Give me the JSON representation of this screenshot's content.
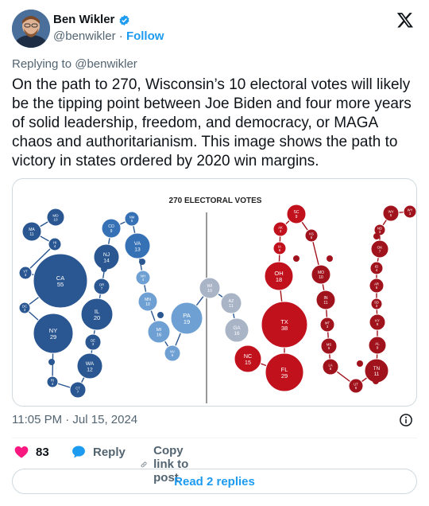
{
  "author": {
    "name": "Ben Wikler",
    "handle": "@benwikler",
    "separator": "·",
    "follow_label": "Follow"
  },
  "icons": {
    "verified": "verified-badge-icon",
    "logo": "x-logo-icon",
    "info": "info-icon",
    "like": "heart-icon",
    "reply": "speech-bubble-icon",
    "copy": "link-icon"
  },
  "colors": {
    "accent": "#1d9bf0",
    "like": "#f91880",
    "blue_state": "#2a5791",
    "light_blue_state": "#6fa0d3",
    "gray_state": "#a9b4c6",
    "red_state": "#b0121d"
  },
  "tweet": {
    "replying_to": "Replying to @benwikler",
    "text": "On the path to 270, Wisconsin’s 10 electoral votes will likely be the tipping point between Joe Biden and four more years of solid leadership, freedom, and democracy, or MAGA chaos and authoritarianism. This image shows the path to victory in states ordered by 2020 win margins.",
    "timestamp": "11:05 PM · Jul 15, 2024"
  },
  "media": {
    "title": "270 ELECTORAL VOTES",
    "states": [
      {
        "abbr": "MD",
        "ev": "10",
        "color": "#2a5791"
      },
      {
        "abbr": "MA",
        "ev": "11",
        "color": "#2a5791"
      },
      {
        "abbr": "HI",
        "ev": "4",
        "color": "#2a5791"
      },
      {
        "abbr": "VT",
        "ev": "3",
        "color": "#2a5791"
      },
      {
        "abbr": "CA",
        "ev": "55",
        "color": "#2a5791"
      },
      {
        "abbr": "DC",
        "ev": "3",
        "color": "#2a5791"
      },
      {
        "abbr": "NY",
        "ev": "29",
        "color": "#2a5791"
      },
      {
        "abbr": "RI",
        "ev": "4",
        "color": "#2a5791"
      },
      {
        "abbr": "CT",
        "ev": "7",
        "color": "#2a5791"
      },
      {
        "abbr": "WA",
        "ev": "12",
        "color": "#2a5791"
      },
      {
        "abbr": "DE",
        "ev": "3",
        "color": "#2a5791"
      },
      {
        "abbr": "IL",
        "ev": "20",
        "color": "#2a5791"
      },
      {
        "abbr": "OR",
        "ev": "7",
        "color": "#2a5791"
      },
      {
        "abbr": "NJ",
        "ev": "14",
        "color": "#2a5791"
      },
      {
        "abbr": "CO",
        "ev": "9",
        "color": "#3671b5"
      },
      {
        "abbr": "NM",
        "ev": "5",
        "color": "#3671b5"
      },
      {
        "abbr": "VA",
        "ev": "13",
        "color": "#3671b5"
      },
      {
        "abbr": "NH",
        "ev": "4",
        "color": "#6fa0d3"
      },
      {
        "abbr": "MN",
        "ev": "10",
        "color": "#6fa0d3"
      },
      {
        "abbr": "MI",
        "ev": "16",
        "color": "#6fa0d3"
      },
      {
        "abbr": "NV",
        "ev": "6",
        "color": "#6fa0d3"
      },
      {
        "abbr": "PA",
        "ev": "19",
        "color": "#6fa0d3"
      },
      {
        "abbr": "WI",
        "ev": "10",
        "color": "#a9b4c6"
      },
      {
        "abbr": "AZ",
        "ev": "11",
        "color": "#a9b4c6"
      },
      {
        "abbr": "GA",
        "ev": "16",
        "color": "#a9b4c6"
      },
      {
        "abbr": "NC",
        "ev": "15",
        "color": "#c0111d"
      },
      {
        "abbr": "FL",
        "ev": "29",
        "color": "#c0111d"
      },
      {
        "abbr": "TX",
        "ev": "38",
        "color": "#c0111d"
      },
      {
        "abbr": "OH",
        "ev": "18",
        "color": "#c0111d"
      },
      {
        "abbr": "IA",
        "ev": "6",
        "color": "#c0111d"
      },
      {
        "abbr": "AK",
        "ev": "3",
        "color": "#c0111d"
      },
      {
        "abbr": "SC",
        "ev": "9",
        "color": "#c0111d"
      },
      {
        "abbr": "KS",
        "ev": "6",
        "color": "#a1131c"
      },
      {
        "abbr": "MO",
        "ev": "10",
        "color": "#a1131c"
      },
      {
        "abbr": "IN",
        "ev": "11",
        "color": "#a1131c"
      },
      {
        "abbr": "MT",
        "ev": "3",
        "color": "#a1131c"
      },
      {
        "abbr": "MS",
        "ev": "6",
        "color": "#a1131c"
      },
      {
        "abbr": "LA",
        "ev": "8",
        "color": "#a1131c"
      },
      {
        "abbr": "UT",
        "ev": "6",
        "color": "#a1131c"
      },
      {
        "abbr": "TN",
        "ev": "11",
        "color": "#a1131c"
      },
      {
        "abbr": "AL",
        "ev": "9",
        "color": "#a1131c"
      },
      {
        "abbr": "KY",
        "ev": "8",
        "color": "#a1131c"
      },
      {
        "abbr": "SD",
        "ev": "3",
        "color": "#a1131c"
      },
      {
        "abbr": "AR",
        "ev": "6",
        "color": "#a1131c"
      },
      {
        "abbr": "ID",
        "ev": "4",
        "color": "#a1131c"
      },
      {
        "abbr": "OK",
        "ev": "7",
        "color": "#a1131c"
      },
      {
        "abbr": "ND",
        "ev": "3",
        "color": "#a1131c"
      },
      {
        "abbr": "WV",
        "ev": "5",
        "color": "#a1131c"
      },
      {
        "abbr": "WY",
        "ev": "3",
        "color": "#a1131c"
      }
    ]
  },
  "actions": {
    "like_count": "83",
    "reply_label": "Reply",
    "copy_label": "Copy link to post"
  },
  "read_replies": "Read 2 replies"
}
